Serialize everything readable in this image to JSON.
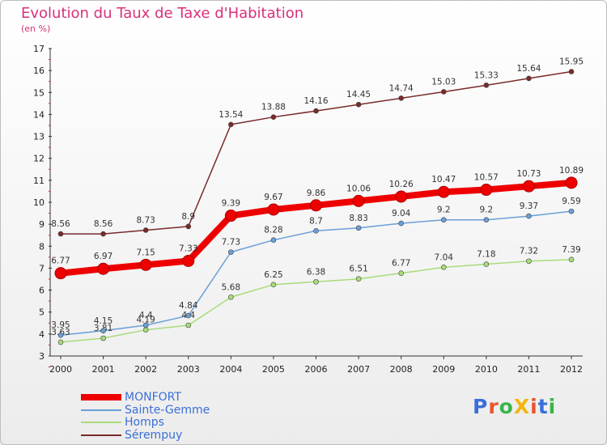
{
  "title": "Evolution du Taux de Taxe d'Habitation",
  "subtitle": "(en %)",
  "logo": {
    "text": "ProXiti",
    "colors": [
      "#3a6fd8",
      "#e8542a",
      "#39b54a",
      "#f2b712",
      "#e8542a",
      "#3a6fd8",
      "#39b54a"
    ]
  },
  "colors": {
    "title": "#d9307a",
    "axis": "#333333",
    "grid": "#c8c8c8",
    "tick_red": "#e01818"
  },
  "chart_data": {
    "type": "line",
    "title": "Evolution du Taux de Taxe d'Habitation",
    "ylabel": "(en %)",
    "xlabel": "",
    "x": [
      "2000",
      "2001",
      "2002",
      "2003",
      "2004",
      "2005",
      "2006",
      "2007",
      "2008",
      "2009",
      "2010",
      "2011",
      "2012"
    ],
    "ylim": [
      3,
      17
    ],
    "yticks": [
      3,
      4,
      5,
      6,
      7,
      8,
      9,
      10,
      11,
      12,
      13,
      14,
      15,
      16,
      17
    ],
    "grid": false,
    "legend_position": "bottom-left",
    "series": [
      {
        "name": "MONFORT",
        "color": "#ee0000",
        "width": 8,
        "values": [
          6.77,
          6.97,
          7.15,
          7.33,
          9.39,
          9.67,
          9.86,
          10.06,
          10.26,
          10.47,
          10.57,
          10.73,
          10.89
        ],
        "labels": [
          "6.77",
          "6.97",
          "7.15",
          "7.33",
          "9.39",
          "9.67",
          "9.86",
          "10.06",
          "10.26",
          "10.47",
          "10.57",
          "10.73",
          "10.89"
        ]
      },
      {
        "name": "Sainte-Gemme",
        "color": "#6a9fd8",
        "width": 1.5,
        "values": [
          3.95,
          4.15,
          4.4,
          4.84,
          7.73,
          8.28,
          8.7,
          8.83,
          9.04,
          9.2,
          9.2,
          9.37,
          9.59
        ],
        "labels": [
          "3.95",
          "4.15",
          "4.4",
          "4.84",
          "7.73",
          "8.28",
          "8.7",
          "8.83",
          "9.04",
          "9.2",
          "9.2",
          "9.37",
          "9.59"
        ]
      },
      {
        "name": "Homps",
        "color": "#a8dc7a",
        "width": 1.5,
        "values": [
          3.63,
          3.81,
          4.19,
          4.4,
          5.68,
          6.25,
          6.38,
          6.51,
          6.77,
          7.04,
          7.18,
          7.32,
          7.39
        ],
        "labels": [
          "3.63",
          "3.81",
          "4.19",
          "4.4",
          "5.68",
          "6.25",
          "6.38",
          "6.51",
          "6.77",
          "7.04",
          "7.18",
          "7.32",
          "7.39"
        ]
      },
      {
        "name": "Sérempuy",
        "color": "#7a2a2a",
        "width": 1.5,
        "values": [
          8.56,
          8.56,
          8.73,
          8.9,
          13.54,
          13.88,
          14.16,
          14.45,
          14.74,
          15.03,
          15.33,
          15.64,
          15.95
        ],
        "labels": [
          "8.56",
          "8.56",
          "8.73",
          "8.9",
          "13.54",
          "13.88",
          "14.16",
          "14.45",
          "14.74",
          "15.03",
          "15.33",
          "15.64",
          "15.95"
        ]
      }
    ]
  }
}
